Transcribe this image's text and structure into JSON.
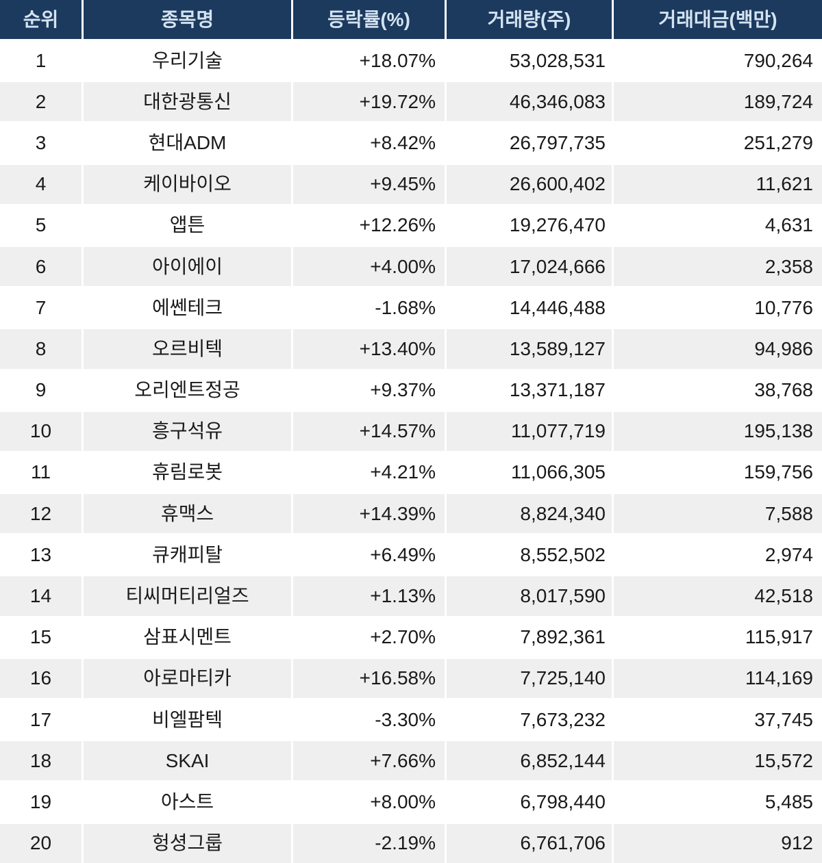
{
  "chart_data": {
    "type": "table",
    "title": "",
    "columns": [
      "순위",
      "종목명",
      "등락률(%)",
      "거래량(주)",
      "거래대금(백만)"
    ],
    "column_keys": [
      "rank",
      "name",
      "change",
      "volume",
      "value"
    ],
    "rows": [
      [
        "1",
        "우리기술",
        "+18.07%",
        "53,028,531",
        "790,264"
      ],
      [
        "2",
        "대한광통신",
        "+19.72%",
        "46,346,083",
        "189,724"
      ],
      [
        "3",
        "현대ADM",
        "+8.42%",
        "26,797,735",
        "251,279"
      ],
      [
        "4",
        "케이바이오",
        "+9.45%",
        "26,600,402",
        "11,621"
      ],
      [
        "5",
        "앱튼",
        "+12.26%",
        "19,276,470",
        "4,631"
      ],
      [
        "6",
        "아이에이",
        "+4.00%",
        "17,024,666",
        "2,358"
      ],
      [
        "7",
        "에쎈테크",
        "-1.68%",
        "14,446,488",
        "10,776"
      ],
      [
        "8",
        "오르비텍",
        "+13.40%",
        "13,589,127",
        "94,986"
      ],
      [
        "9",
        "오리엔트정공",
        "+9.37%",
        "13,371,187",
        "38,768"
      ],
      [
        "10",
        "흥구석유",
        "+14.57%",
        "11,077,719",
        "195,138"
      ],
      [
        "11",
        "휴림로봇",
        "+4.21%",
        "11,066,305",
        "159,756"
      ],
      [
        "12",
        "휴맥스",
        "+14.39%",
        "8,824,340",
        "7,588"
      ],
      [
        "13",
        "큐캐피탈",
        "+6.49%",
        "8,552,502",
        "2,974"
      ],
      [
        "14",
        "티씨머티리얼즈",
        "+1.13%",
        "8,017,590",
        "42,518"
      ],
      [
        "15",
        "삼표시멘트",
        "+2.70%",
        "7,892,361",
        "115,917"
      ],
      [
        "16",
        "아로마티카",
        "+16.58%",
        "7,725,140",
        "114,169"
      ],
      [
        "17",
        "비엘팜텍",
        "-3.30%",
        "7,673,232",
        "37,745"
      ],
      [
        "18",
        "SKAI",
        "+7.66%",
        "6,852,144",
        "15,572"
      ],
      [
        "19",
        "아스트",
        "+8.00%",
        "6,798,440",
        "5,485"
      ],
      [
        "20",
        "헝셩그룹",
        "-2.19%",
        "6,761,706",
        "912"
      ]
    ]
  },
  "colors": {
    "header_bg": "#1c3a5e",
    "header_text": "#d4e3f1",
    "row_bg": "#ffffff",
    "row_alt_bg": "#efefef",
    "cell_text": "#1a1a1a",
    "gutter": "#ffffff"
  }
}
